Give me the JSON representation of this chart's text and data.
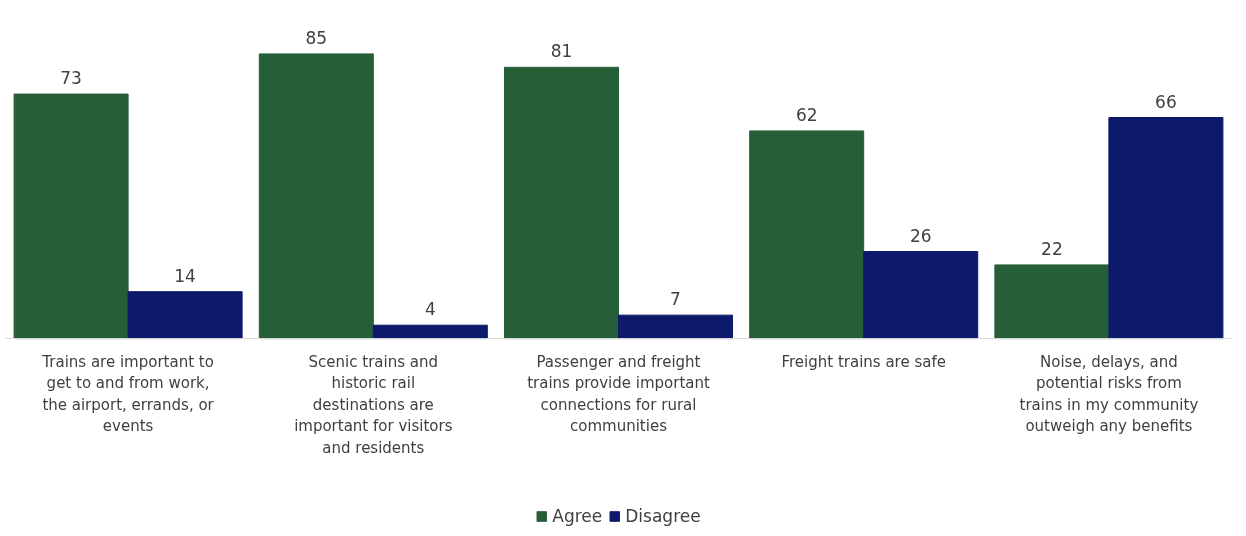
{
  "chart_data": {
    "type": "bar",
    "categories": [
      "Trains are important to get to and from work, the airport, errands, or events",
      "Scenic trains and historic rail destinations are important for visitors and residents",
      "Passenger and freight trains provide important connections for rural communities",
      "Freight trains are safe",
      "Noise, delays, and potential risks from trains in my community outweigh any benefits"
    ],
    "series": [
      {
        "name": "Agree",
        "color": "#265e38",
        "values": [
          73,
          85,
          81,
          62,
          22
        ]
      },
      {
        "name": "Disagree",
        "color": "#0d1a6b",
        "values": [
          14,
          4,
          7,
          26,
          66
        ]
      }
    ],
    "data_labels": true,
    "legend": "bottom"
  }
}
